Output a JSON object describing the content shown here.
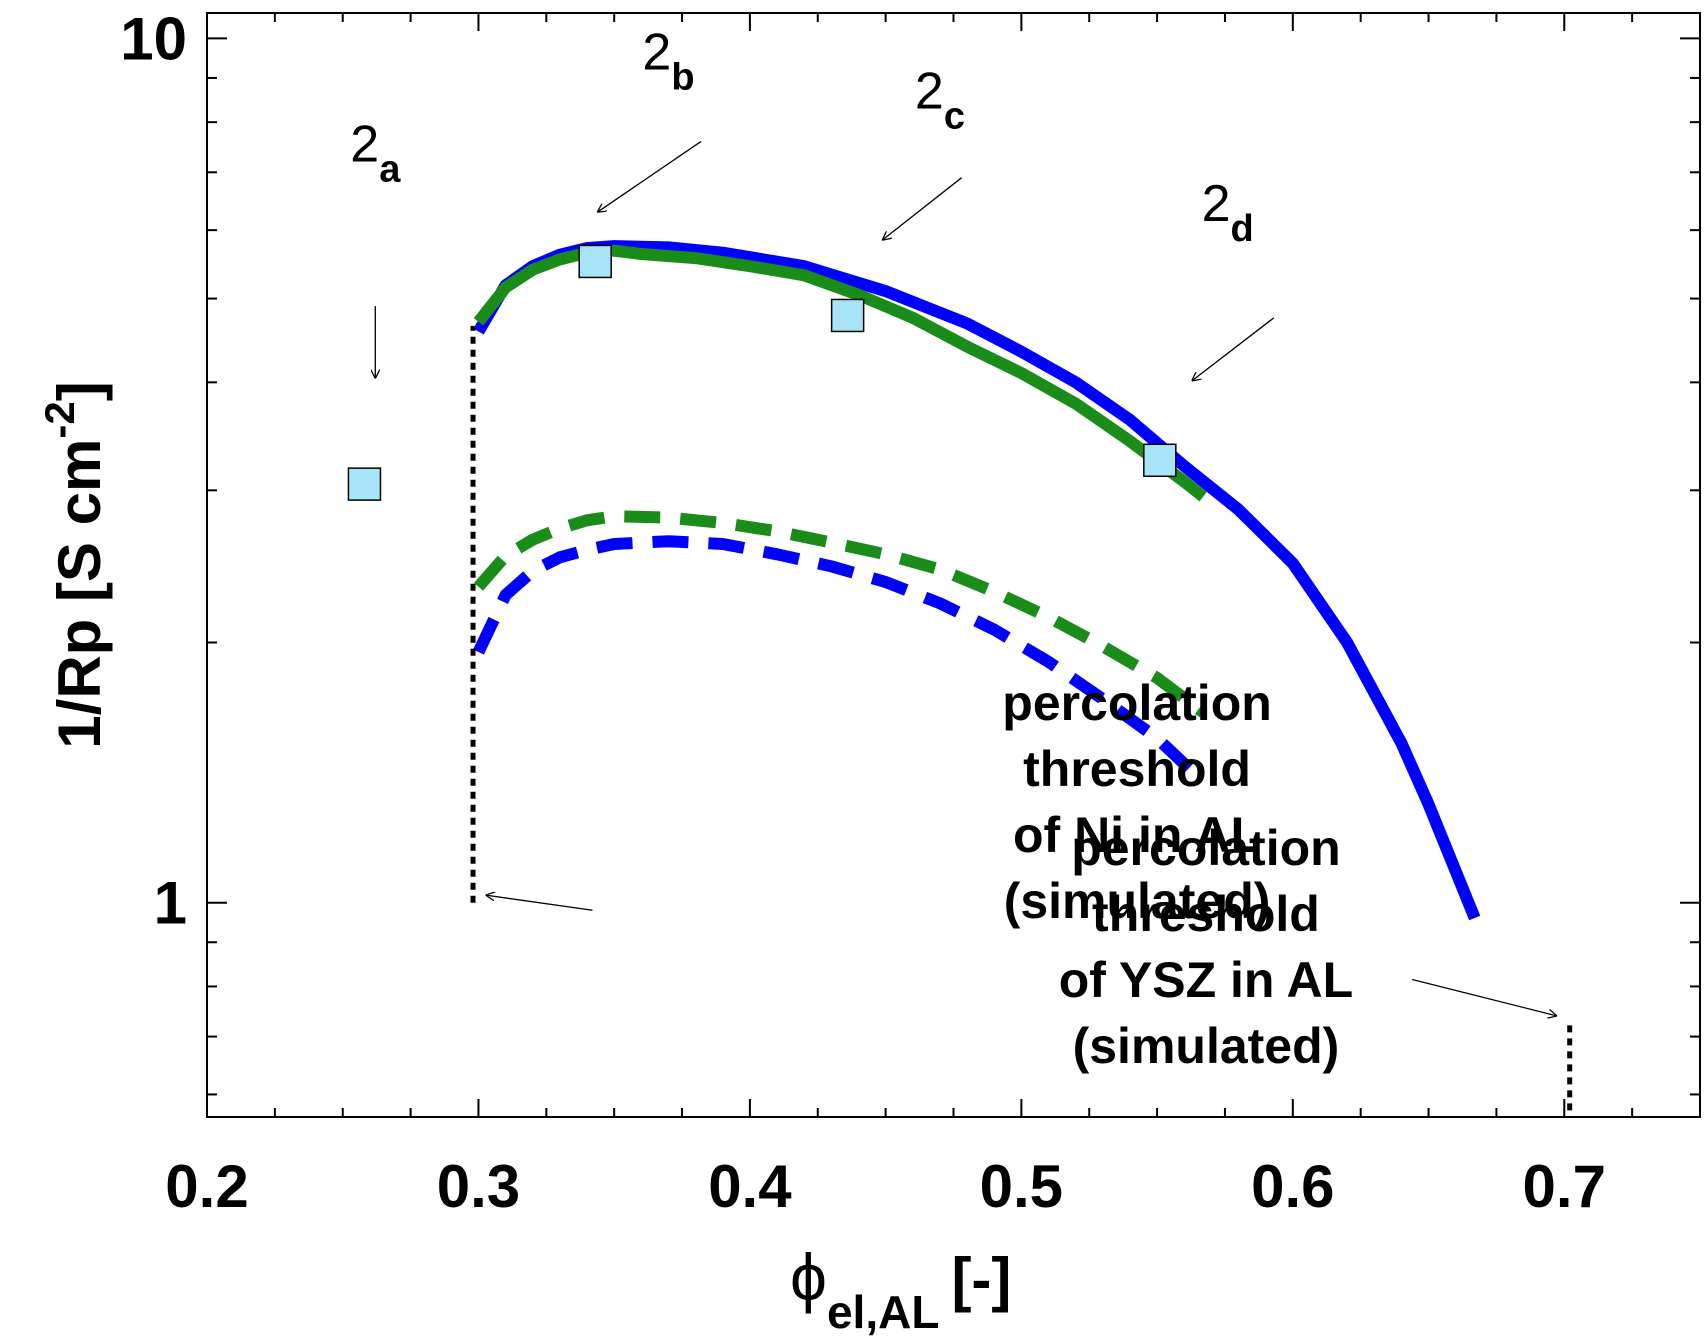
{
  "chart_data": {
    "type": "line",
    "title": "",
    "xlabel_symbol": "ϕ",
    "xlabel_subscript": "el,AL",
    "xlabel_suffix": "[-]",
    "ylabel_main": "1/Rp [S cm",
    "ylabel_exp": "-2",
    "ylabel_close": "]",
    "xlim": [
      0.2,
      0.75
    ],
    "ylim": [
      0.565,
      10.7
    ],
    "yscale": "log",
    "xticks": [
      "0.2",
      "0.3",
      "0.4",
      "0.5",
      "0.6",
      "0.7"
    ],
    "xtick_values": [
      0.2,
      0.3,
      0.4,
      0.5,
      0.6,
      0.7
    ],
    "yticks": [
      "1",
      "10"
    ],
    "ytick_values": [
      1,
      10
    ],
    "series": [
      {
        "name": "blue-solid",
        "color": "#0000ff",
        "style": "solid",
        "x": [
          0.3,
          0.31,
          0.32,
          0.33,
          0.34,
          0.35,
          0.37,
          0.39,
          0.42,
          0.45,
          0.48,
          0.5,
          0.52,
          0.54,
          0.56,
          0.57,
          0.58,
          0.6,
          0.62,
          0.64,
          0.65,
          0.667
        ],
        "y": [
          4.58,
          5.18,
          5.45,
          5.62,
          5.72,
          5.75,
          5.73,
          5.65,
          5.45,
          5.1,
          4.68,
          4.34,
          4.0,
          3.62,
          3.2,
          3.02,
          2.85,
          2.47,
          2.0,
          1.53,
          1.3,
          0.96
        ]
      },
      {
        "name": "green-solid",
        "color": "#1a8c1a",
        "style": "solid",
        "x": [
          0.3,
          0.31,
          0.32,
          0.33,
          0.34,
          0.35,
          0.36,
          0.38,
          0.4,
          0.42,
          0.44,
          0.46,
          0.48,
          0.5,
          0.52,
          0.54,
          0.56,
          0.567
        ],
        "y": [
          4.7,
          5.15,
          5.4,
          5.55,
          5.65,
          5.68,
          5.63,
          5.57,
          5.45,
          5.32,
          5.05,
          4.75,
          4.4,
          4.1,
          3.78,
          3.42,
          3.07,
          2.95
        ]
      },
      {
        "name": "green-dashed",
        "color": "#1a8c1a",
        "style": "dashed",
        "x": [
          0.3,
          0.31,
          0.32,
          0.33,
          0.34,
          0.35,
          0.37,
          0.39,
          0.41,
          0.43,
          0.45,
          0.47,
          0.49,
          0.51,
          0.53,
          0.55,
          0.567
        ],
        "y": [
          2.32,
          2.52,
          2.63,
          2.71,
          2.77,
          2.8,
          2.79,
          2.75,
          2.69,
          2.61,
          2.53,
          2.43,
          2.29,
          2.14,
          1.98,
          1.82,
          1.66
        ]
      },
      {
        "name": "blue-dashed",
        "color": "#0000ff",
        "style": "dashed",
        "x": [
          0.3,
          0.31,
          0.32,
          0.33,
          0.34,
          0.35,
          0.37,
          0.39,
          0.41,
          0.43,
          0.45,
          0.47,
          0.49,
          0.51,
          0.53,
          0.55,
          0.567
        ],
        "y": [
          1.95,
          2.27,
          2.42,
          2.51,
          2.56,
          2.6,
          2.62,
          2.6,
          2.53,
          2.45,
          2.35,
          2.22,
          2.07,
          1.9,
          1.72,
          1.55,
          1.38
        ]
      }
    ],
    "markers": {
      "color": "#a8e4f8",
      "x": [
        0.258,
        0.343,
        0.436,
        0.551
      ],
      "y": [
        3.05,
        5.52,
        4.78,
        3.25
      ]
    },
    "point_labels": [
      {
        "base": "2",
        "sub": "a",
        "label_x": 0.262,
        "label_y": 7.2,
        "arrow_to": [
          0.262,
          4.05
        ],
        "arrow_from": [
          0.262,
          4.9
        ]
      },
      {
        "base": "2",
        "sub": "b",
        "label_x": 0.37,
        "label_y": 9.2,
        "arrow_to": [
          0.344,
          6.3
        ],
        "arrow_from": [
          0.382,
          7.6
        ]
      },
      {
        "base": "2",
        "sub": "c",
        "label_x": 0.47,
        "label_y": 8.3,
        "arrow_to": [
          0.449,
          5.85
        ],
        "arrow_from": [
          0.478,
          6.9
        ]
      },
      {
        "base": "2",
        "sub": "d",
        "label_x": 0.576,
        "label_y": 6.15,
        "arrow_to": [
          0.563,
          4.02
        ],
        "arrow_from": [
          0.593,
          4.75
        ]
      }
    ],
    "thresholds": [
      {
        "x": 0.298,
        "y_from": 1.0,
        "y_to": 4.65
      },
      {
        "x": 0.702,
        "y_from": 0.575,
        "y_to": 0.73
      }
    ],
    "annotations": [
      {
        "lines": [
          "percolation",
          "threshold",
          "of Ni in AL",
          "(simulated)"
        ],
        "anchor": [
          0.41,
          1.0
        ],
        "arrow_from": [
          0.342,
          0.98
        ],
        "arrow_to": [
          0.303,
          1.02
        ]
      },
      {
        "lines": [
          "percolation",
          "threshold",
          "of YSZ in AL",
          "(simulated)"
        ],
        "anchor": [
          0.568,
          0.54
        ],
        "arrow_from": [
          0.644,
          0.815
        ],
        "arrow_to": [
          0.697,
          0.74
        ]
      }
    ]
  }
}
